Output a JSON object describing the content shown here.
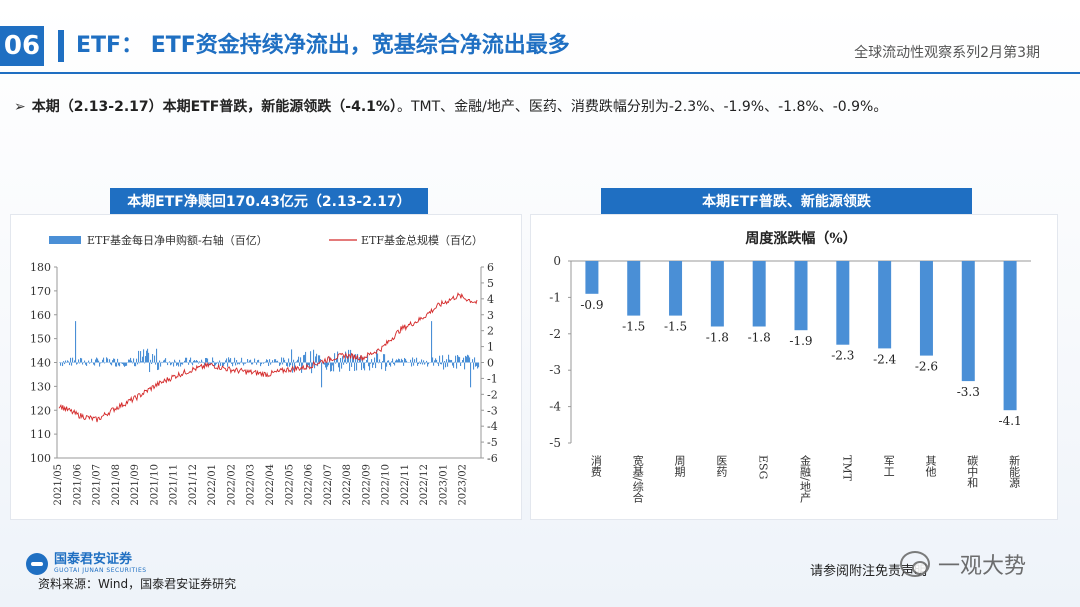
{
  "header": {
    "section_number": "06",
    "title": "ETF： ETF资金持续净流出，宽基综合净流出最多",
    "series_label": "全球流动性观察系列2月第3期"
  },
  "summary": {
    "arrow": "➢",
    "bold_text": "本期（2.13-2.17）本期ETF普跌，新能源领跌（-4.1%）",
    "rest_text": "。TMT、金融/地产、医药、消费跌幅分别为-2.3%、-1.9%、-1.8%、-0.9%。"
  },
  "left_panel": {
    "title": "本期ETF净赎回170.43亿元（2.13-2.17）"
  },
  "right_panel": {
    "title": "本期ETF普跌、新能源领跌"
  },
  "chart_data": [
    {
      "type": "line",
      "title": "",
      "series": [
        {
          "name": "ETF基金每日净申购额-右轴（百亿）",
          "kind": "bar",
          "axis": "right",
          "color": "#4a8fd6"
        },
        {
          "name": "ETF基金总规模（百亿）",
          "kind": "line",
          "axis": "left",
          "color": "#d42a2a"
        }
      ],
      "x_ticks": [
        "2021/05",
        "2021/06",
        "2021/07",
        "2021/08",
        "2021/09",
        "2021/10",
        "2021/11",
        "2021/12",
        "2022/01",
        "2022/02",
        "2022/03",
        "2022/04",
        "2022/05",
        "2022/06",
        "2022/07",
        "2022/08",
        "2022/09",
        "2022/10",
        "2022/11",
        "2022/12",
        "2023/01",
        "2023/02"
      ],
      "y_left_ticks": [
        100,
        110,
        120,
        130,
        140,
        150,
        160,
        170,
        180
      ],
      "y_right_ticks": [
        -6,
        -5,
        -4,
        -3,
        -2,
        -1,
        0,
        1,
        2,
        3,
        4,
        5,
        6
      ],
      "ylim_left": [
        100,
        180
      ],
      "ylim_right": [
        -6,
        6
      ],
      "line_monthly_approx": [
        122,
        118,
        116,
        121,
        125,
        130,
        134,
        137,
        139,
        137,
        136,
        135,
        137,
        138,
        141,
        143,
        142,
        146,
        154,
        158,
        164,
        168,
        165
      ],
      "grid": false,
      "legend": "top"
    },
    {
      "type": "bar",
      "title": "周度涨跌幅（%）",
      "categories": [
        "消费",
        "宽基/综合",
        "周期",
        "医药",
        "ESG",
        "金融/地产",
        "TMT",
        "军工",
        "其他",
        "碳中和",
        "新能源"
      ],
      "values": [
        -0.9,
        -1.5,
        -1.5,
        -1.8,
        -1.8,
        -1.9,
        -2.3,
        -2.4,
        -2.6,
        -3.3,
        -4.1
      ],
      "value_labels": [
        "-0.9",
        "-1.5",
        "-1.5",
        "-1.8",
        "-1.8",
        "-1.9",
        "-2.3",
        "-2.4",
        "-2.6",
        "-3.3",
        "-4.1"
      ],
      "y_ticks": [
        "0",
        "-1",
        "-2",
        "-3",
        "-4",
        "-5"
      ],
      "ylim": [
        -5,
        0
      ],
      "color": "#4a8fd6",
      "grid": false
    }
  ],
  "footer": {
    "logo_cn": "国泰君安证券",
    "logo_en": "GUOTAI JUNAN SECURITIES",
    "source": "资料来源：Wind，国泰君安证券研究",
    "disclaimer": "请参阅附注免责声明",
    "watermark": "一观大势"
  }
}
